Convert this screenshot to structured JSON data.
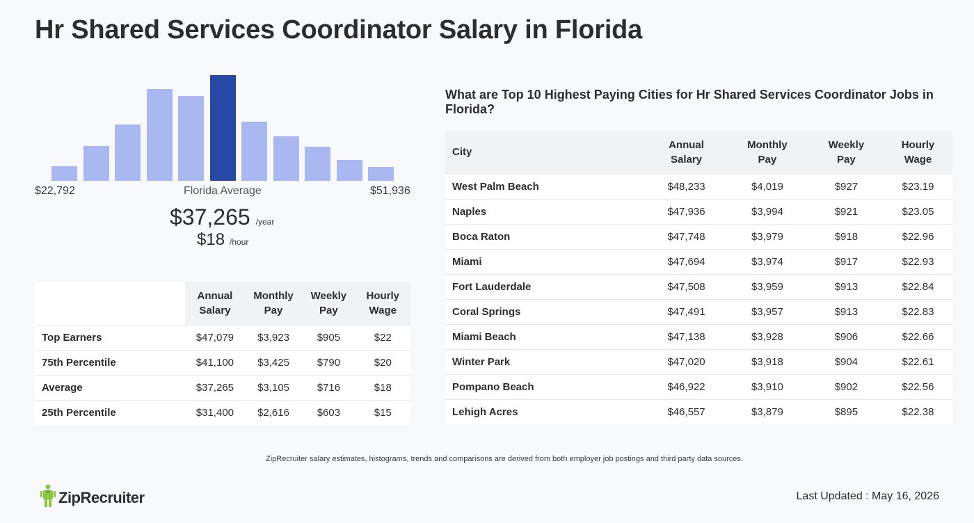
{
  "page": {
    "title": "Hr Shared Services Coordinator Salary in Florida"
  },
  "histogram": {
    "range_min": "$22,792",
    "range_max": "$51,936",
    "avg_label": "Florida Average",
    "bar_color": "#aab8f2",
    "highlight_color": "#2748a6",
    "highlight_index": 5,
    "relative_heights": [
      0.14,
      0.33,
      0.53,
      0.87,
      0.8,
      1.0,
      0.56,
      0.42,
      0.32,
      0.2,
      0.13
    ]
  },
  "average": {
    "annual": "$37,265",
    "annual_unit": "/year",
    "hourly": "$18",
    "hourly_unit": "/hour"
  },
  "percentile_table": {
    "headers": [
      "Annual Salary",
      "Monthly Pay",
      "Weekly Pay",
      "Hourly Wage"
    ],
    "rows": [
      {
        "label": "Top Earners",
        "values": [
          "$47,079",
          "$3,923",
          "$905",
          "$22"
        ]
      },
      {
        "label": "75th Percentile",
        "values": [
          "$41,100",
          "$3,425",
          "$790",
          "$20"
        ]
      },
      {
        "label": "Average",
        "values": [
          "$37,265",
          "$3,105",
          "$716",
          "$18"
        ]
      },
      {
        "label": "25th Percentile",
        "values": [
          "$31,400",
          "$2,616",
          "$603",
          "$15"
        ]
      }
    ]
  },
  "cities": {
    "title": "What are Top 10 Highest Paying Cities for Hr Shared Services Coordinator Jobs in Florida?",
    "headers": [
      "City",
      "Annual Salary",
      "Monthly Pay",
      "Weekly Pay",
      "Hourly Wage"
    ],
    "rows": [
      {
        "city": "West Palm Beach",
        "values": [
          "$48,233",
          "$4,019",
          "$927",
          "$23.19"
        ]
      },
      {
        "city": "Naples",
        "values": [
          "$47,936",
          "$3,994",
          "$921",
          "$23.05"
        ]
      },
      {
        "city": "Boca Raton",
        "values": [
          "$47,748",
          "$3,979",
          "$918",
          "$22.96"
        ]
      },
      {
        "city": "Miami",
        "values": [
          "$47,694",
          "$3,974",
          "$917",
          "$22.93"
        ]
      },
      {
        "city": "Fort Lauderdale",
        "values": [
          "$47,508",
          "$3,959",
          "$913",
          "$22.84"
        ]
      },
      {
        "city": "Coral Springs",
        "values": [
          "$47,491",
          "$3,957",
          "$913",
          "$22.83"
        ]
      },
      {
        "city": "Miami Beach",
        "values": [
          "$47,138",
          "$3,928",
          "$906",
          "$22.66"
        ]
      },
      {
        "city": "Winter Park",
        "values": [
          "$47,020",
          "$3,918",
          "$904",
          "$22.61"
        ]
      },
      {
        "city": "Pompano Beach",
        "values": [
          "$46,922",
          "$3,910",
          "$902",
          "$22.56"
        ]
      },
      {
        "city": "Lehigh Acres",
        "values": [
          "$46,557",
          "$3,879",
          "$895",
          "$22.38"
        ]
      }
    ]
  },
  "footer": {
    "disclaimer": "ZipRecruiter salary estimates, histograms, trends and comparisons are derived from both employer job postings and third party data sources.",
    "logo_text": "ZipRecruiter",
    "logo_icon": "ziprecruiter-person-icon",
    "logo_color": "#8bc53f",
    "last_updated": "Last Updated : May 16, 2026"
  }
}
